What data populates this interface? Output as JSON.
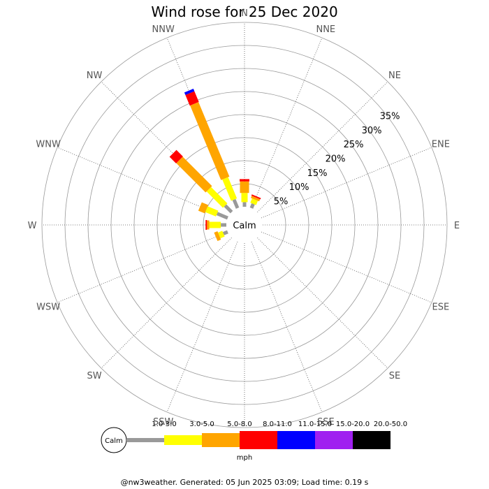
{
  "chart_data": {
    "type": "wind-rose",
    "title": "Wind rose for 25 Dec 2020",
    "directions": [
      "N",
      "NNE",
      "NE",
      "ENE",
      "E",
      "ESE",
      "SE",
      "SSE",
      "S",
      "SSW",
      "SW",
      "WSW",
      "W",
      "WNW",
      "NW",
      "NNW"
    ],
    "rings": [
      "5%",
      "10%",
      "15%",
      "20%",
      "25%",
      "30%",
      "35%"
    ],
    "calm_label": "Calm",
    "units": "mph",
    "speed_bins": [
      {
        "label": "1.0-3.0",
        "color": "#999999"
      },
      {
        "label": "3.0-5.0",
        "color": "#ffff00"
      },
      {
        "label": "5.0-8.0",
        "color": "#ffa500"
      },
      {
        "label": "8.0-11.0",
        "color": "#ff0000"
      },
      {
        "label": "11.0-15.0",
        "color": "#0000ff"
      },
      {
        "label": "15.0-20.0",
        "color": "#a020f0"
      },
      {
        "label": "20.0-50.0",
        "color": "#000000"
      }
    ],
    "series": [
      {
        "direction": "N",
        "values": [
          1.0,
          2.0,
          2.5,
          0.5,
          0,
          0,
          0
        ]
      },
      {
        "direction": "NNE",
        "values": [
          1.0,
          1.0,
          0.5,
          0.3,
          0,
          0,
          0
        ]
      },
      {
        "direction": "NE",
        "values": [
          0,
          0,
          0,
          0,
          0,
          0,
          0
        ]
      },
      {
        "direction": "ENE",
        "values": [
          0,
          0,
          0,
          0,
          0,
          0,
          0
        ]
      },
      {
        "direction": "E",
        "values": [
          0,
          0,
          0,
          0,
          0,
          0,
          0
        ]
      },
      {
        "direction": "ESE",
        "values": [
          0,
          0,
          0,
          0,
          0,
          0,
          0
        ]
      },
      {
        "direction": "SE",
        "values": [
          0,
          0,
          0,
          0,
          0,
          0,
          0
        ]
      },
      {
        "direction": "SSE",
        "values": [
          0,
          0,
          0,
          0,
          0,
          0,
          0
        ]
      },
      {
        "direction": "S",
        "values": [
          0,
          0,
          0,
          0,
          0,
          0,
          0
        ]
      },
      {
        "direction": "SSW",
        "values": [
          0,
          0,
          0,
          0,
          0,
          0,
          0
        ]
      },
      {
        "direction": "SW",
        "values": [
          0,
          0,
          0,
          0,
          0,
          0,
          0
        ]
      },
      {
        "direction": "WSW",
        "values": [
          1.0,
          1.0,
          0.8,
          0,
          0,
          0,
          0
        ]
      },
      {
        "direction": "W",
        "values": [
          1.2,
          2.5,
          0.5,
          0.3,
          0,
          0,
          0
        ]
      },
      {
        "direction": "WNW",
        "values": [
          2.5,
          2.5,
          1.5,
          0,
          0,
          0,
          0
        ]
      },
      {
        "direction": "NW",
        "values": [
          2.0,
          5.0,
          9.0,
          2.0,
          0,
          0,
          0
        ]
      },
      {
        "direction": "NNW",
        "values": [
          2.0,
          5.0,
          17.5,
          2.5,
          0.6,
          0,
          0
        ]
      }
    ]
  },
  "footer": "@nw3weather. Generated: 05 Jun 2025 03:09; Load time: 0.19 s"
}
